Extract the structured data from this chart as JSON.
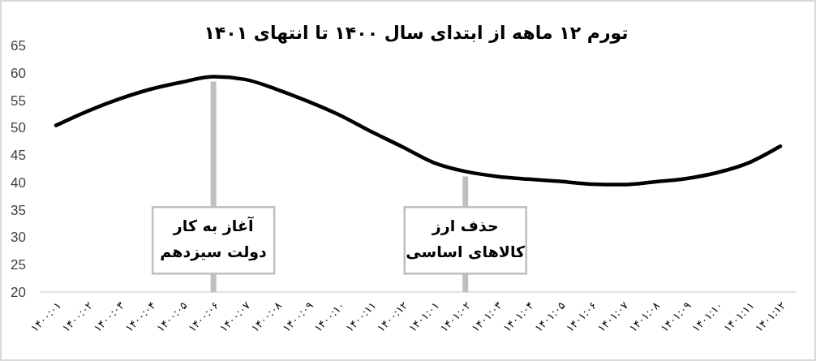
{
  "chart_data": {
    "type": "line",
    "title": "تورم ۱۲ ماهه از ابتدای سال ۱۴۰۰ تا انتهای ۱۴۰۱",
    "categories": [
      "۱۴۰۰:۰۱",
      "۱۴۰۰:۰۲",
      "۱۴۰۰:۰۳",
      "۱۴۰۰:۰۴",
      "۱۴۰۰:۰۵",
      "۱۴۰۰:۰۶",
      "۱۴۰۰:۰۷",
      "۱۴۰۰:۰۸",
      "۱۴۰۰:۰۹",
      "۱۴۰۰:۱۰",
      "۱۴۰۰:۱۱",
      "۱۴۰۰:۱۲",
      "۱۴۰۱:۰۱",
      "۱۴۰۱:۰۲",
      "۱۴۰۱:۰۳",
      "۱۴۰۱:۰۴",
      "۱۴۰۱:۰۵",
      "۱۴۰۱:۰۶",
      "۱۴۰۱:۰۷",
      "۱۴۰۱:۰۸",
      "۱۴۰۱:۰۹",
      "۱۴۰۱:۱۰",
      "۱۴۰۱:۱۱",
      "۱۴۰۱:۱۲"
    ],
    "series": [
      {
        "color": "#000000",
        "values": [
          50.4,
          53.0,
          55.2,
          57.0,
          58.3,
          59.3,
          58.8,
          57.0,
          54.8,
          52.3,
          49.3,
          46.5,
          43.6,
          42.0,
          41.1,
          40.6,
          40.2,
          39.7,
          39.6,
          40.1,
          40.7,
          41.8,
          43.6,
          46.6
        ]
      }
    ],
    "ylim": [
      20,
      65
    ],
    "yticks": [
      20,
      25,
      30,
      35,
      40,
      45,
      50,
      55,
      60,
      65
    ],
    "marker": "none",
    "line_style": "solid",
    "ref_lines": [
      {
        "axis": "x",
        "value": "۱۴۰۰:۰۶",
        "label": "آغاز به کار\nدولت سیزدهم",
        "color": "#bfbfbf"
      },
      {
        "axis": "x",
        "value": "۱۴۰۱:۰۲",
        "label": "حذف ارز\nکالاهای اساسی",
        "color": "#bfbfbf"
      }
    ]
  }
}
